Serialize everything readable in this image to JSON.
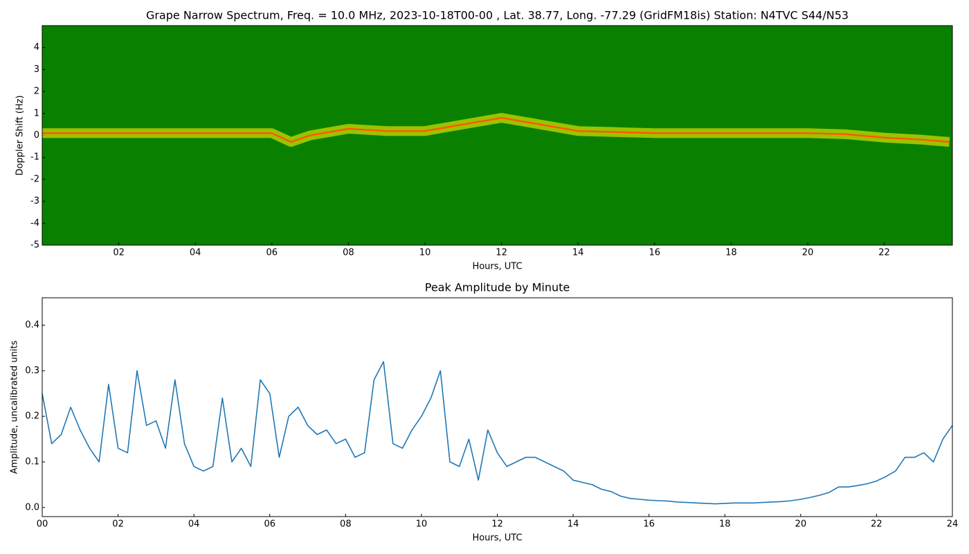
{
  "chart_data": [
    {
      "type": "spectrogram",
      "title": "Grape Narrow Spectrum, Freq. = 10.0 MHz, 2023-10-18T00-00 , Lat.  38.77, Long. -77.29 (GridFM18is) Station: N4TVC S44/N53",
      "xlabel": "Hours, UTC",
      "ylabel": "Doppler Shift (Hz)",
      "background_color": "#0a8000",
      "glow_color": "#d8e000",
      "xlim": [
        0,
        23.78
      ],
      "ylim": [
        -5,
        5
      ],
      "xticks": [
        {
          "value": 2,
          "label": "02"
        },
        {
          "value": 4,
          "label": "04"
        },
        {
          "value": 6,
          "label": "06"
        },
        {
          "value": 8,
          "label": "08"
        },
        {
          "value": 10,
          "label": "10"
        },
        {
          "value": 12,
          "label": "12"
        },
        {
          "value": 14,
          "label": "14"
        },
        {
          "value": 16,
          "label": "16"
        },
        {
          "value": 18,
          "label": "18"
        },
        {
          "value": 20,
          "label": "20"
        },
        {
          "value": 22,
          "label": "22"
        }
      ],
      "yticks": [
        -5,
        -4,
        -3,
        -2,
        -1,
        0,
        1,
        2,
        3,
        4
      ],
      "series": [
        {
          "color": "#ff5a00",
          "x": [
            0,
            1,
            2,
            3,
            4,
            5,
            6,
            6.5,
            7,
            8,
            9,
            10,
            11,
            12,
            13,
            14,
            15,
            16,
            17,
            18,
            19,
            20,
            21,
            22,
            23,
            23.7
          ],
          "values": [
            0.1,
            0.1,
            0.1,
            0.1,
            0.1,
            0.1,
            0.1,
            -0.3,
            0.0,
            0.3,
            0.2,
            0.2,
            0.5,
            0.8,
            0.5,
            0.2,
            0.15,
            0.1,
            0.1,
            0.1,
            0.1,
            0.1,
            0.05,
            -0.1,
            -0.2,
            -0.3
          ]
        }
      ]
    },
    {
      "type": "line",
      "title": "Peak Amplitude by Minute",
      "xlabel": "Hours, UTC",
      "ylabel": "Amplitude, uncalibrated units",
      "xlim": [
        0,
        24
      ],
      "ylim": [
        -0.02,
        0.46
      ],
      "xticks": [
        {
          "value": 0,
          "label": "00"
        },
        {
          "value": 2,
          "label": "02"
        },
        {
          "value": 4,
          "label": "04"
        },
        {
          "value": 6,
          "label": "06"
        },
        {
          "value": 8,
          "label": "08"
        },
        {
          "value": 10,
          "label": "10"
        },
        {
          "value": 12,
          "label": "12"
        },
        {
          "value": 14,
          "label": "14"
        },
        {
          "value": 16,
          "label": "16"
        },
        {
          "value": 18,
          "label": "18"
        },
        {
          "value": 20,
          "label": "20"
        },
        {
          "value": 22,
          "label": "22"
        },
        {
          "value": 24,
          "label": "24"
        }
      ],
      "yticks": [
        {
          "value": 0,
          "label": "0.0"
        },
        0.1,
        0.2,
        0.3,
        0.4
      ],
      "series": [
        {
          "color": "#1f77b4",
          "x": [
            0,
            0.25,
            0.5,
            0.75,
            1,
            1.25,
            1.5,
            1.75,
            2,
            2.25,
            2.5,
            2.75,
            3,
            3.25,
            3.5,
            3.75,
            4,
            4.25,
            4.5,
            4.75,
            5,
            5.25,
            5.5,
            5.75,
            6,
            6.25,
            6.5,
            6.75,
            7,
            7.25,
            7.5,
            7.75,
            8,
            8.25,
            8.5,
            8.75,
            9,
            9.25,
            9.5,
            9.75,
            10,
            10.25,
            10.5,
            10.75,
            11,
            11.25,
            11.5,
            11.75,
            12,
            12.25,
            12.5,
            12.75,
            13,
            13.25,
            13.5,
            13.75,
            14,
            14.25,
            14.5,
            14.75,
            15,
            15.25,
            15.5,
            15.75,
            16,
            16.25,
            16.5,
            16.75,
            17,
            17.25,
            17.5,
            17.75,
            18,
            18.25,
            18.5,
            18.75,
            19,
            19.25,
            19.5,
            19.75,
            20,
            20.25,
            20.5,
            20.75,
            21,
            21.25,
            21.5,
            21.75,
            22,
            22.25,
            22.5,
            22.75,
            23,
            23.25,
            23.5,
            23.75,
            24
          ],
          "values": [
            0.25,
            0.14,
            0.16,
            0.22,
            0.17,
            0.13,
            0.1,
            0.27,
            0.13,
            0.12,
            0.3,
            0.18,
            0.19,
            0.13,
            0.28,
            0.14,
            0.09,
            0.08,
            0.09,
            0.24,
            0.1,
            0.13,
            0.09,
            0.28,
            0.25,
            0.11,
            0.2,
            0.22,
            0.18,
            0.16,
            0.17,
            0.14,
            0.15,
            0.11,
            0.12,
            0.28,
            0.32,
            0.14,
            0.13,
            0.17,
            0.2,
            0.24,
            0.3,
            0.1,
            0.09,
            0.15,
            0.06,
            0.17,
            0.12,
            0.09,
            0.1,
            0.11,
            0.11,
            0.1,
            0.09,
            0.08,
            0.06,
            0.055,
            0.05,
            0.04,
            0.035,
            0.025,
            0.02,
            0.018,
            0.016,
            0.015,
            0.014,
            0.012,
            0.011,
            0.01,
            0.009,
            0.008,
            0.009,
            0.01,
            0.01,
            0.01,
            0.011,
            0.012,
            0.013,
            0.015,
            0.018,
            0.022,
            0.027,
            0.033,
            0.045,
            0.045,
            0.048,
            0.052,
            0.058,
            0.068,
            0.08,
            0.11,
            0.11,
            0.12,
            0.1,
            0.15,
            0.18
          ]
        }
      ]
    }
  ]
}
